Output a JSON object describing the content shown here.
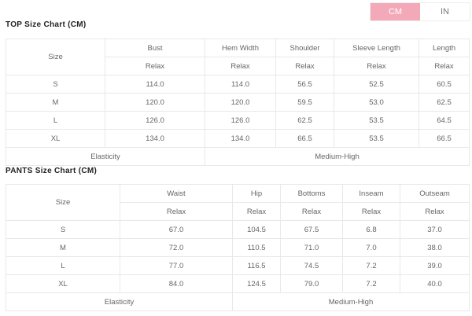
{
  "unit_toggle": {
    "options": [
      "CM",
      "IN"
    ],
    "selected": "CM",
    "accent": "#f4a9b9"
  },
  "top": {
    "title": "TOP Size Chart (CM)",
    "size_label": "Size",
    "columns": [
      "Bust",
      "Hem Width",
      "Shoulder",
      "Sleeve Length",
      "Length"
    ],
    "fit": "Relax",
    "rows": [
      [
        "S",
        "114.0",
        "114.0",
        "56.5",
        "52.5",
        "60.5"
      ],
      [
        "M",
        "120.0",
        "120.0",
        "59.5",
        "53.0",
        "62.5"
      ],
      [
        "L",
        "126.0",
        "126.0",
        "62.5",
        "53.5",
        "64.5"
      ],
      [
        "XL",
        "134.0",
        "134.0",
        "66.5",
        "53.5",
        "66.5"
      ]
    ],
    "elasticity_label": "Elasticity",
    "elasticity_value": "Medium-High"
  },
  "pants": {
    "title": "PANTS Size Chart (CM)",
    "size_label": "Size",
    "columns": [
      "Waist",
      "Hip",
      "Bottoms",
      "Inseam",
      "Outseam"
    ],
    "fit": "Relax",
    "rows": [
      [
        "S",
        "67.0",
        "104.5",
        "67.5",
        "6.8",
        "37.0"
      ],
      [
        "M",
        "72.0",
        "110.5",
        "71.0",
        "7.0",
        "38.0"
      ],
      [
        "L",
        "77.0",
        "116.5",
        "74.5",
        "7.2",
        "39.0"
      ],
      [
        "XL",
        "84.0",
        "124.5",
        "79.0",
        "7.2",
        "40.0"
      ]
    ],
    "elasticity_label": "Elasticity",
    "elasticity_value": "Medium-High"
  }
}
